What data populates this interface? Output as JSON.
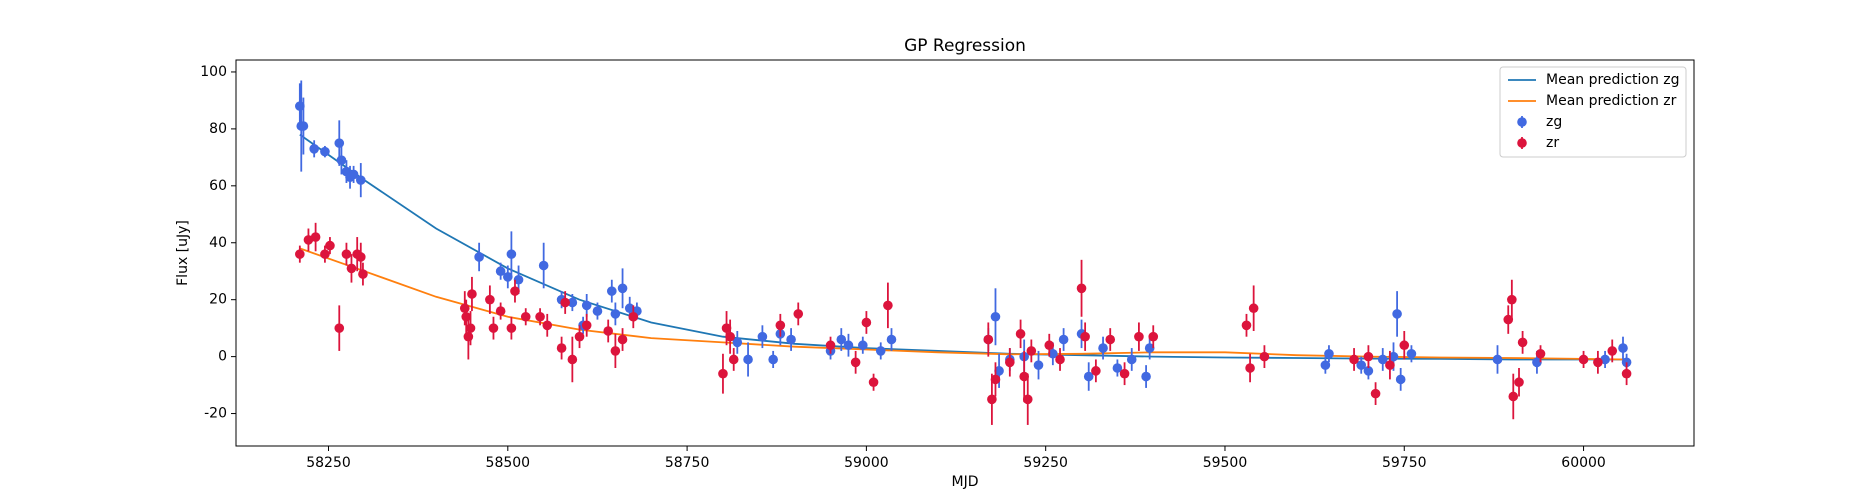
{
  "chart_data": {
    "type": "scatter",
    "title": "GP Regression",
    "x_label": "MJD",
    "y_label": "Flux [uJy]",
    "xlim": [
      58121,
      60154
    ],
    "ylim": [
      -31.4,
      104.2
    ],
    "xticks": [
      58250,
      58500,
      58750,
      59000,
      59250,
      59500,
      59750,
      60000
    ],
    "yticks": [
      -20,
      0,
      20,
      40,
      60,
      80,
      100
    ],
    "legend": "upper right",
    "series": [
      {
        "name": "Mean prediction zg",
        "kind": "line",
        "color": "#1f77b4",
        "x": [
          58210,
          58300,
          58400,
          58500,
          58600,
          58700,
          58800,
          58900,
          59000,
          59100,
          59200,
          59300,
          59400,
          59500,
          59600,
          59700,
          59800,
          59900,
          60000,
          60060
        ],
        "values": [
          78,
          62,
          45,
          31,
          20,
          12,
          7,
          4.5,
          3,
          2,
          1,
          0.5,
          0,
          -0.3,
          -0.5,
          -0.7,
          -0.8,
          -1,
          -1,
          -1
        ]
      },
      {
        "name": "Mean prediction zr",
        "kind": "line",
        "color": "#ff7f0e",
        "x": [
          58210,
          58300,
          58400,
          58500,
          58600,
          58700,
          58800,
          58900,
          59000,
          59100,
          59200,
          59300,
          59400,
          59500,
          59600,
          59700,
          59800,
          59900,
          60000,
          60060
        ],
        "values": [
          38,
          30,
          21,
          14,
          9.5,
          6.5,
          5,
          3.5,
          2.5,
          1.5,
          0.8,
          1,
          1.5,
          1.5,
          0.5,
          0,
          -0.3,
          -0.5,
          -0.8,
          -1
        ]
      },
      {
        "name": "zg",
        "kind": "errorbar",
        "color": "#4169e1",
        "x": [
          58210,
          58212,
          58215,
          58230,
          58245,
          58265,
          58268,
          58275,
          58280,
          58285,
          58295,
          58460,
          58490,
          58500,
          58505,
          58515,
          58550,
          58575,
          58590,
          58605,
          58610,
          58625,
          58645,
          58650,
          58660,
          58670,
          58680,
          58820,
          58835,
          58855,
          58870,
          58880,
          58895,
          58950,
          58965,
          58975,
          58995,
          59020,
          59035,
          59170,
          59180,
          59185,
          59200,
          59220,
          59240,
          59260,
          59275,
          59300,
          59310,
          59330,
          59350,
          59370,
          59390,
          59395,
          59640,
          59645,
          59690,
          59700,
          59720,
          59735,
          59740,
          59745,
          59760,
          59880,
          59935,
          60030,
          60055,
          60060
        ],
        "values": [
          88,
          81,
          81,
          73,
          72,
          75,
          69,
          65,
          63,
          64,
          62,
          35,
          30,
          28,
          36,
          27,
          32,
          20,
          19,
          11,
          18,
          16,
          23,
          15,
          24,
          17,
          16,
          5,
          -1,
          7,
          -1,
          8,
          6,
          2,
          6,
          4,
          4,
          2,
          6,
          6,
          14,
          -5,
          -1,
          0,
          -3,
          1,
          6,
          8,
          -7,
          3,
          -4,
          -1,
          -7,
          3,
          -3,
          1,
          -3,
          -5,
          -1,
          0,
          15,
          -8,
          1,
          -1,
          -2,
          -1,
          3,
          -2
        ],
        "errors": [
          8,
          16,
          10,
          3,
          2,
          8,
          5,
          4,
          4,
          3,
          6,
          5,
          3,
          4,
          8,
          5,
          8,
          3,
          3,
          3,
          4,
          3,
          4,
          4,
          7,
          4,
          3,
          4,
          6,
          4,
          3,
          4,
          4,
          3,
          4,
          4,
          3,
          3,
          4,
          4,
          10,
          6,
          4,
          6,
          5,
          4,
          4,
          5,
          5,
          4,
          3,
          4,
          4,
          4,
          3,
          3,
          3,
          3,
          4,
          5,
          8,
          4,
          3,
          5,
          4,
          3,
          4,
          3
        ]
      },
      {
        "name": "zr",
        "kind": "errorbar",
        "color": "#dc143c",
        "x": [
          58210,
          58222,
          58232,
          58245,
          58252,
          58265,
          58275,
          58282,
          58290,
          58295,
          58298,
          58440,
          58442,
          58445,
          58448,
          58450,
          58475,
          58480,
          58490,
          58505,
          58510,
          58525,
          58545,
          58555,
          58575,
          58580,
          58590,
          58600,
          58610,
          58640,
          58650,
          58660,
          58675,
          58800,
          58805,
          58810,
          58815,
          58880,
          58905,
          58950,
          58985,
          59000,
          59010,
          59030,
          59170,
          59175,
          59180,
          59200,
          59215,
          59220,
          59225,
          59230,
          59255,
          59270,
          59300,
          59305,
          59320,
          59340,
          59360,
          59380,
          59400,
          59530,
          59535,
          59540,
          59555,
          59680,
          59700,
          59710,
          59730,
          59750,
          59895,
          59900,
          59902,
          59910,
          59915,
          59940,
          60000,
          60020,
          60040,
          60060
        ],
        "values": [
          36,
          41,
          42,
          36,
          39,
          10,
          36,
          31,
          36,
          35,
          29,
          17,
          14,
          7,
          10,
          22,
          20,
          10,
          16,
          10,
          23,
          14,
          14,
          11,
          3,
          19,
          -1,
          7,
          11,
          9,
          2,
          6,
          14,
          -6,
          10,
          7,
          -1,
          11,
          15,
          4,
          -2,
          12,
          -9,
          18,
          6,
          -15,
          -8,
          -2,
          8,
          -7,
          -15,
          2,
          4,
          -1,
          24,
          7,
          -5,
          6,
          -6,
          7,
          7,
          11,
          -4,
          17,
          0,
          -1,
          0,
          -13,
          -3,
          4,
          13,
          20,
          -14,
          -9,
          5,
          1,
          -1,
          -2,
          2,
          -6
        ],
        "errors": [
          3,
          4,
          5,
          3,
          3,
          8,
          4,
          5,
          6,
          5,
          4,
          6,
          6,
          8,
          6,
          6,
          5,
          4,
          3,
          4,
          4,
          3,
          3,
          4,
          4,
          4,
          8,
          4,
          4,
          4,
          6,
          4,
          4,
          7,
          6,
          6,
          4,
          4,
          4,
          3,
          4,
          4,
          3,
          8,
          6,
          9,
          6,
          5,
          5,
          9,
          9,
          4,
          4,
          4,
          10,
          5,
          4,
          4,
          4,
          5,
          4,
          4,
          5,
          8,
          4,
          4,
          4,
          4,
          5,
          5,
          5,
          7,
          8,
          5,
          4,
          3,
          3,
          4,
          4,
          4
        ]
      }
    ]
  }
}
